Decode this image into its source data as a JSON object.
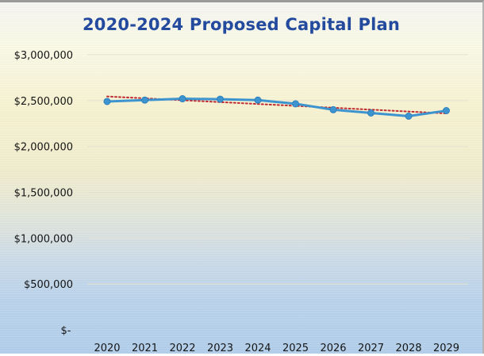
{
  "chart_data": {
    "type": "line",
    "title": "2020-2024 Proposed Capital Plan",
    "xlabel": "",
    "ylabel": "",
    "categories": [
      "2020",
      "2021",
      "2022",
      "2023",
      "2024",
      "2025",
      "2026",
      "2027",
      "2028",
      "2029"
    ],
    "series": [
      {
        "values": [
          2490000,
          2505000,
          2520000,
          2515000,
          2505000,
          2465000,
          2400000,
          2365000,
          2330000,
          2390000
        ],
        "color": "#3a93d0"
      }
    ],
    "trendline": {
      "type": "linear",
      "start": 2545000,
      "end": 2360000,
      "color": "#c0282e",
      "style": "dotted"
    },
    "ylim": [
      0,
      3000000
    ],
    "y_ticks": [
      0,
      500000,
      1000000,
      1500000,
      2000000,
      2500000,
      3000000
    ],
    "y_tick_labels": [
      "$-",
      "$500,000",
      "$1,000,000",
      "$1,500,000",
      "$2,000,000",
      "$2,500,000",
      "$3,000,000"
    ],
    "grid": true,
    "legend": "none"
  }
}
